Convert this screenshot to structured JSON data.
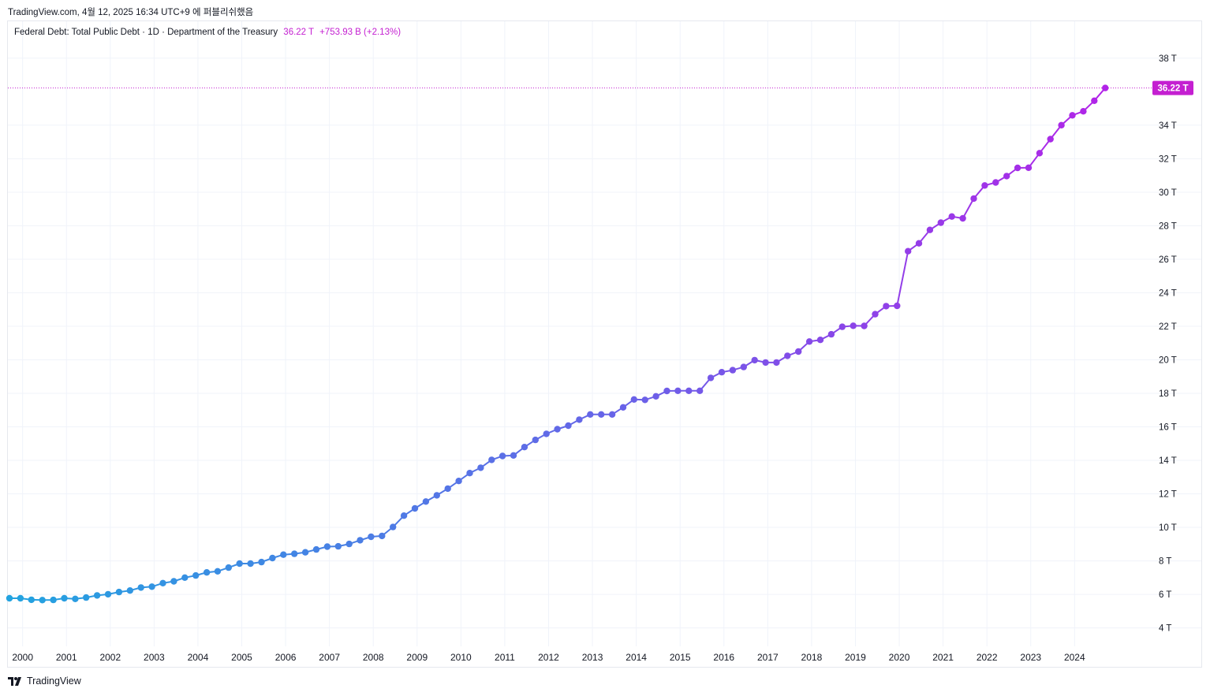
{
  "header": {
    "text": "TradingView.com, 4월 12, 2025 16:34 UTC+9 에 퍼블리쉬했음"
  },
  "legend": {
    "title": "Federal Debt: Total Public Debt · 1D · Department of the Treasury",
    "value": "36.22 T",
    "change": "+753.93 B (+2.13%)"
  },
  "last_price_label": "36.22 T",
  "footer": {
    "brand": "TradingView"
  },
  "colors": {
    "start": "#22a3e0",
    "mid": "#6a61e8",
    "end": "#b81ee8",
    "price_line": "#c41fd1",
    "grid": "#f0f3fa"
  },
  "chart_data": {
    "type": "line",
    "y_unit": "T",
    "ylim": [
      2.9,
      40.2
    ],
    "xlim": [
      1999.72,
      2025.67
    ],
    "y_ticks": [
      4,
      6,
      8,
      10,
      12,
      14,
      16,
      18,
      20,
      22,
      24,
      26,
      28,
      30,
      32,
      34,
      38
    ],
    "y_tick_labels": [
      "4 T",
      "6 T",
      "8 T",
      "10 T",
      "12 T",
      "14 T",
      "16 T",
      "18 T",
      "20 T",
      "22 T",
      "24 T",
      "26 T",
      "28 T",
      "30 T",
      "32 T",
      "34 T",
      "38 T"
    ],
    "x_ticks": [
      2000,
      2001,
      2002,
      2003,
      2004,
      2005,
      2006,
      2007,
      2008,
      2009,
      2010,
      2011,
      2012,
      2013,
      2014,
      2015,
      2016,
      2017,
      2018,
      2019,
      2020,
      2021,
      2022,
      2023,
      2024
    ],
    "x_tick_labels": [
      "2000",
      "2001",
      "2002",
      "2003",
      "2004",
      "2005",
      "2006",
      "2007",
      "2008",
      "2009",
      "2010",
      "2011",
      "2012",
      "2013",
      "2014",
      "2015",
      "2016",
      "2017",
      "2018",
      "2019",
      "2020",
      "2021",
      "2022",
      "2023",
      "2024"
    ],
    "series": [
      {
        "y": [
          5.77,
          5.77,
          5.68,
          5.66,
          5.67,
          5.77,
          5.73,
          5.81,
          5.94,
          6.01,
          6.14,
          6.23,
          6.41,
          6.46,
          6.67,
          6.78,
          7.0,
          7.13,
          7.31,
          7.38,
          7.6,
          7.84,
          7.84,
          7.93,
          8.17,
          8.37,
          8.42,
          8.51,
          8.68,
          8.85,
          8.87,
          9.01,
          9.23,
          9.44,
          9.49,
          10.02,
          10.7,
          11.13,
          11.54,
          11.91,
          12.31,
          12.77,
          13.24,
          13.56,
          14.03,
          14.26,
          14.29,
          14.79,
          15.22,
          15.58,
          15.86,
          16.07,
          16.43,
          16.74,
          16.74,
          16.74,
          17.16,
          17.63,
          17.61,
          17.82,
          18.14,
          18.15,
          18.15,
          18.15,
          18.92,
          19.26,
          19.38,
          19.57,
          19.98,
          19.84,
          19.84,
          20.24,
          20.49,
          21.09,
          21.19,
          21.52,
          21.97,
          22.03,
          22.02,
          22.72,
          23.2,
          23.22,
          26.48,
          26.95,
          27.75,
          28.18,
          28.55,
          28.44,
          29.62,
          30.4,
          30.58,
          30.96,
          31.45,
          31.46,
          32.33,
          33.17,
          34.0,
          34.59,
          34.83,
          35.46,
          36.22
        ],
        "x_start": 1999.72,
        "x_step": 0.25
      }
    ],
    "grid": true,
    "last_value": 36.22,
    "last_value_label": "36.22 T"
  }
}
